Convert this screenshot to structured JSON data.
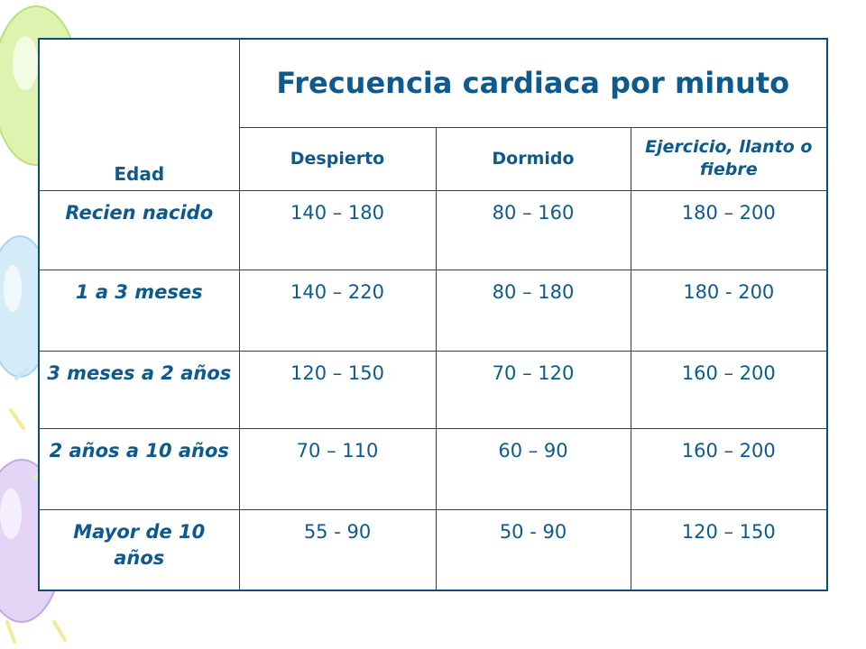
{
  "slide": {
    "table": {
      "edad_header": "Edad",
      "title": "Frecuencia cardiaca por minuto",
      "columns": [
        "Despierto",
        "Dormido",
        "Ejercicio, llanto o fiebre"
      ],
      "rows": [
        {
          "age": "Recien nacido",
          "despierto": "140 – 180",
          "dormido": "80 – 160",
          "ejercicio": "180 – 200"
        },
        {
          "age": "1 a 3 meses",
          "despierto": "140 – 220",
          "dormido": "80 – 180",
          "ejercicio": "180 - 200"
        },
        {
          "age": "3 meses a 2 años",
          "despierto": "120 – 150",
          "dormido": "70 – 120",
          "ejercicio": "160 – 200"
        },
        {
          "age": "2 años a 10 años",
          "despierto": "70 – 110",
          "dormido": "60 – 90",
          "ejercicio": "160 – 200"
        },
        {
          "age": "Mayor de 10 años",
          "despierto": "55 - 90",
          "dormido": "50 - 90",
          "ejercicio": "120 – 150"
        }
      ]
    },
    "colors": {
      "text": "#0e5a8c",
      "border": "#0e4d78",
      "balloon_green": "#d6f0a0",
      "balloon_blue": "#c9e6f5",
      "balloon_purple": "#dcc8f0",
      "balloon_yellow": "#f6f0a8"
    }
  }
}
